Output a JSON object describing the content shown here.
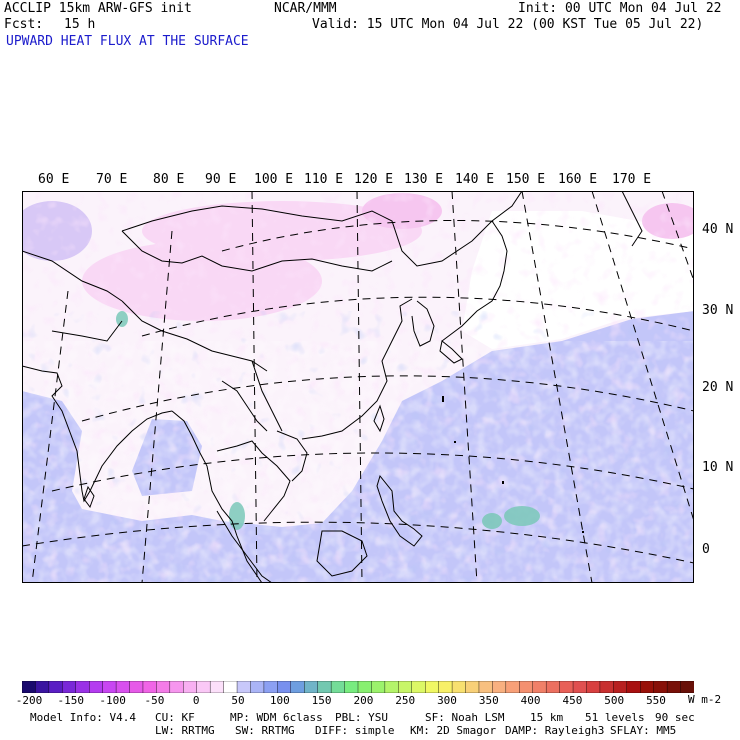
{
  "header": {
    "model": "ACCLIP 15km ARW-GFS init",
    "org": "NCAR/MMM",
    "init": "Init: 00 UTC Mon 04 Jul 22",
    "fcst_label": "Fcst:",
    "fcst_value": "15 h",
    "valid": "Valid: 15 UTC Mon 04 Jul 22 (00 KST Tue 05 Jul 22)",
    "field": "UPWARD HEAT FLUX AT THE SURFACE"
  },
  "map": {
    "lon_labels": [
      "60 E",
      "70 E",
      "80 E",
      "90 E",
      "100 E",
      "110 E",
      "120 E",
      "130 E",
      "140 E",
      "150 E",
      "160 E",
      "170 E"
    ],
    "lat_labels": [
      "40 N",
      "30 N",
      "20 N",
      "10 N",
      "0"
    ]
  },
  "colorbar": {
    "ticks": [
      "-200",
      "-150",
      "-100",
      "-50",
      "0",
      "50",
      "100",
      "150",
      "200",
      "250",
      "300",
      "350",
      "400",
      "450",
      "500",
      "550"
    ],
    "unit": "W m-2",
    "colors": [
      "#1a0a6e",
      "#3a14a0",
      "#5a1ec4",
      "#7a28d8",
      "#9a32e6",
      "#b43cf0",
      "#c846f2",
      "#d850ee",
      "#e65ae8",
      "#f064e6",
      "#f47ce8",
      "#f696ee",
      "#f8b0f2",
      "#fac8f6",
      "#fce0fa",
      "#ffffff",
      "#c8c8fa",
      "#aab4f6",
      "#8ca0f2",
      "#7890ee",
      "#6e9ee0",
      "#70b4c8",
      "#72c8b0",
      "#74dc98",
      "#78ec80",
      "#88f070",
      "#9cf26c",
      "#b4f46a",
      "#c8f668",
      "#dcf866",
      "#f0f864",
      "#f8f068",
      "#f8e070",
      "#f8d078",
      "#f8c080",
      "#f8b080",
      "#f8a078",
      "#f49070",
      "#f08068",
      "#ec7060",
      "#e86058",
      "#e05050",
      "#d84040",
      "#c83030",
      "#b82020",
      "#a81010",
      "#981008",
      "#881008",
      "#781008",
      "#681008"
    ]
  },
  "footer": {
    "model_info": "Model Info: V4.4",
    "cu": "CU: KF",
    "mp": "MP: WDM 6class",
    "pbl": "PBL: YSU",
    "sf": "SF: Noah LSM",
    "res": "15 km",
    "levels": "51 levels",
    "dt": "90 sec",
    "lw": "LW: RRTMG",
    "sw": "SW: RRTMG",
    "diff": "DIFF: simple",
    "km": "KM: 2D Smagor",
    "damp": "DAMP: Rayleigh3",
    "sflay": "SFLAY: MM5"
  }
}
